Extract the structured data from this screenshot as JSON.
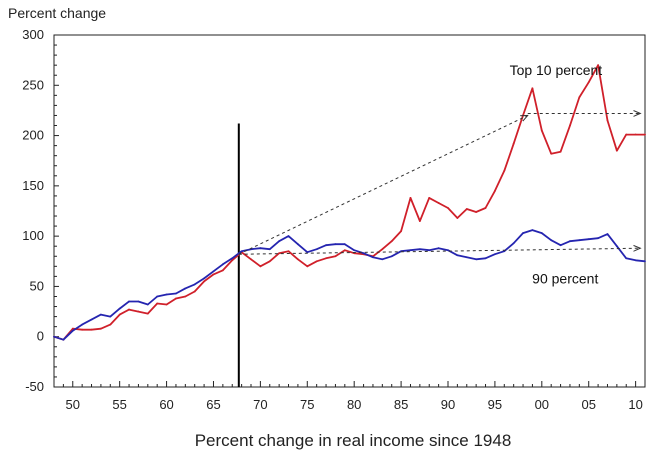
{
  "chart_data": {
    "type": "line",
    "xlabel": "Percent change in real income since 1948",
    "ylabel": "Percent change",
    "xlim": [
      1948,
      2011
    ],
    "ylim": [
      -50,
      300
    ],
    "yticks": [
      -50,
      0,
      50,
      100,
      150,
      200,
      250,
      300
    ],
    "xticks": [
      1950,
      1955,
      1960,
      1965,
      1970,
      1975,
      1980,
      1985,
      1990,
      1995,
      2000,
      2005,
      2010
    ],
    "xtick_labels": [
      "50",
      "55",
      "60",
      "65",
      "70",
      "75",
      "80",
      "85",
      "90",
      "95",
      "00",
      "05",
      "10"
    ],
    "grid": false,
    "x": [
      1948,
      1949,
      1950,
      1951,
      1952,
      1953,
      1954,
      1955,
      1956,
      1957,
      1958,
      1959,
      1960,
      1961,
      1962,
      1963,
      1964,
      1965,
      1966,
      1967,
      1968,
      1969,
      1970,
      1971,
      1972,
      1973,
      1974,
      1975,
      1976,
      1977,
      1978,
      1979,
      1980,
      1981,
      1982,
      1983,
      1984,
      1985,
      1986,
      1987,
      1988,
      1989,
      1990,
      1991,
      1992,
      1993,
      1994,
      1995,
      1996,
      1997,
      1998,
      1999,
      2000,
      2001,
      2002,
      2003,
      2004,
      2005,
      2006,
      2007,
      2008,
      2009,
      2010,
      2011
    ],
    "series": [
      {
        "name": "Top 10 percent",
        "color": "#d0202a",
        "values": [
          0,
          -3,
          8,
          7,
          7,
          8,
          12,
          22,
          27,
          25,
          23,
          33,
          32,
          38,
          40,
          45,
          55,
          62,
          66,
          76,
          84,
          77,
          70,
          75,
          83,
          85,
          77,
          70,
          75,
          78,
          80,
          86,
          83,
          82,
          80,
          87,
          95,
          105,
          138,
          115,
          138,
          133,
          128,
          118,
          127,
          124,
          128,
          145,
          165,
          192,
          220,
          247,
          205,
          182,
          184,
          210,
          238,
          253,
          270,
          215,
          185,
          201,
          201,
          201
        ]
      },
      {
        "name": "90 percent",
        "color": "#2525b0",
        "values": [
          0,
          -3,
          6,
          12,
          17,
          22,
          20,
          28,
          35,
          35,
          32,
          40,
          42,
          43,
          48,
          52,
          58,
          65,
          72,
          78,
          85,
          87,
          88,
          87,
          95,
          100,
          92,
          84,
          87,
          91,
          92,
          92,
          86,
          83,
          79,
          77,
          80,
          85,
          86,
          87,
          86,
          88,
          86,
          81,
          79,
          77,
          78,
          82,
          85,
          93,
          103,
          106,
          103,
          96,
          91,
          95,
          96,
          97,
          98,
          102,
          90,
          78,
          76,
          75
        ]
      }
    ],
    "annotations": [
      {
        "text": "Top 10 percent",
        "x": 2001.5,
        "y": 265
      },
      {
        "text": "90 percent",
        "x": 2002.5,
        "y": 58
      }
    ],
    "reference_line": {
      "x": 1967.7,
      "y_from": -50,
      "y_to": 212
    },
    "arrows": [
      {
        "from": [
          1967.7,
          82
        ],
        "to": [
          1998.5,
          220
        ],
        "style": "dashed"
      },
      {
        "from": [
          1998.5,
          222
        ],
        "to": [
          2010.5,
          222
        ],
        "style": "dashed"
      },
      {
        "from": [
          1967.7,
          82
        ],
        "to": [
          2010.5,
          88
        ],
        "style": "dashed"
      }
    ]
  }
}
